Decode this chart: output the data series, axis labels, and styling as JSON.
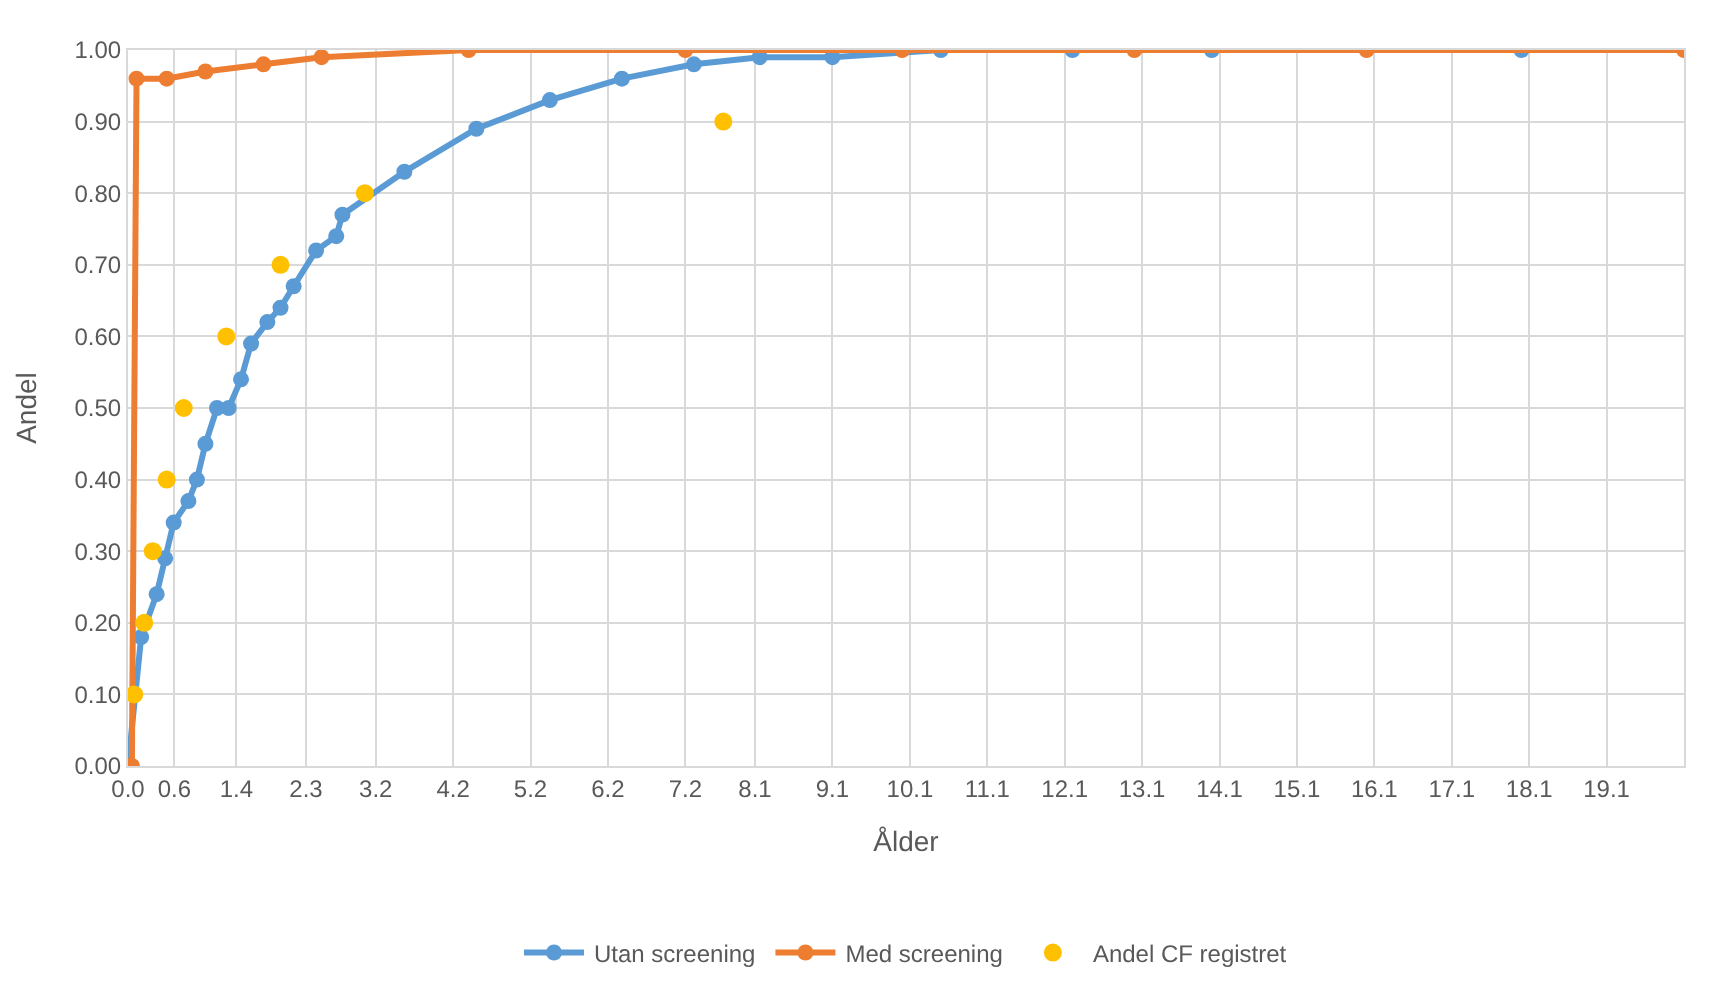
{
  "chart_data": {
    "type": "line",
    "xlabel": "Ålder",
    "ylabel": "Andel",
    "xlim": [
      0,
      20.1
    ],
    "xticks": [
      {
        "value": 0,
        "label": "0.0"
      },
      0.6,
      1.4,
      2.3,
      3.2,
      4.2,
      5.2,
      6.2,
      7.2,
      8.1,
      9.1,
      10.1,
      11.1,
      12.1,
      13.1,
      14.1,
      15.1,
      16.1,
      17.1,
      18.1,
      19.1
    ],
    "ylim": [
      0,
      1.0
    ],
    "yticks": [
      {
        "value": 0,
        "label": "0.00"
      },
      {
        "value": 0.1,
        "label": "0.10"
      },
      {
        "value": 0.2,
        "label": "0.20"
      },
      {
        "value": 0.3,
        "label": "0.30"
      },
      {
        "value": 0.4,
        "label": "0.40"
      },
      {
        "value": 0.5,
        "label": "0.50"
      },
      {
        "value": 0.6,
        "label": "0.60"
      },
      {
        "value": 0.7,
        "label": "0.70"
      },
      {
        "value": 0.8,
        "label": "0.80"
      },
      {
        "value": 0.9,
        "label": "0.90"
      },
      {
        "value": 1.0,
        "label": "1.00"
      }
    ],
    "grid": true,
    "legend": "bottom",
    "marker": "circle",
    "line_style": "solid",
    "series": [
      {
        "name": "Utan screening",
        "color": "#5b9bd5",
        "x": [
          0.0,
          0.17,
          0.37,
          0.48,
          0.59,
          0.78,
          0.89,
          1.0,
          1.15,
          1.3,
          1.46,
          1.59,
          1.8,
          1.97,
          2.14,
          2.43,
          2.69,
          2.77,
          3.57,
          4.5,
          5.45,
          6.38,
          7.31,
          8.16,
          9.1,
          10.5,
          12.2,
          14.0,
          18.0
        ],
        "values": [
          0.0,
          0.18,
          0.24,
          0.29,
          0.34,
          0.37,
          0.4,
          0.45,
          0.5,
          0.5,
          0.54,
          0.59,
          0.62,
          0.64,
          0.67,
          0.72,
          0.74,
          0.77,
          0.83,
          0.89,
          0.93,
          0.96,
          0.98,
          0.99,
          0.99,
          1.0,
          1.0,
          1.0,
          1.0
        ]
      },
      {
        "name": "Med screening",
        "color": "#ed7d31",
        "x": [
          0.0,
          0.05,
          0.11,
          0.5,
          1.0,
          1.75,
          2.5,
          4.4,
          7.2,
          10.0,
          13.0,
          16.0,
          20.1
        ],
        "values": [
          0.0,
          0.0,
          0.96,
          0.96,
          0.97,
          0.98,
          0.99,
          1.0,
          1.0,
          1.0,
          1.0,
          1.0,
          1.0
        ]
      },
      {
        "name": "Andel CF registret",
        "type": "scatter",
        "color": "#ffc000",
        "x": [
          0.08,
          0.21,
          0.32,
          0.5,
          0.72,
          1.27,
          1.97,
          3.06,
          7.69
        ],
        "values": [
          0.1,
          0.2,
          0.3,
          0.4,
          0.5,
          0.6,
          0.7,
          0.8,
          0.9
        ]
      }
    ]
  }
}
